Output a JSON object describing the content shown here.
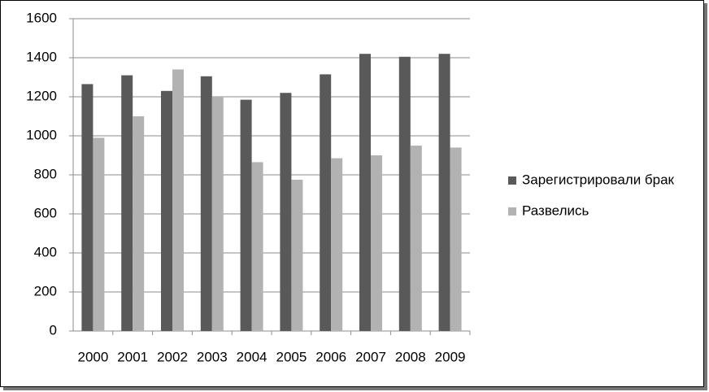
{
  "chart_data": {
    "type": "bar",
    "categories": [
      "2000",
      "2001",
      "2002",
      "2003",
      "2004",
      "2005",
      "2006",
      "2007",
      "2008",
      "2009"
    ],
    "series": [
      {
        "name": "Зарегистрировали брак",
        "color": "#595959",
        "values": [
          1265,
          1310,
          1230,
          1305,
          1185,
          1220,
          1315,
          1420,
          1405,
          1420
        ]
      },
      {
        "name": "Развелись",
        "color": "#b2b2b2",
        "values": [
          990,
          1100,
          1340,
          1200,
          865,
          775,
          885,
          900,
          950,
          940
        ]
      }
    ],
    "ylim": [
      0,
      1600
    ],
    "yticks": [
      0,
      200,
      400,
      600,
      800,
      1000,
      1200,
      1400,
      1600
    ],
    "grid": true,
    "legend": "right"
  }
}
